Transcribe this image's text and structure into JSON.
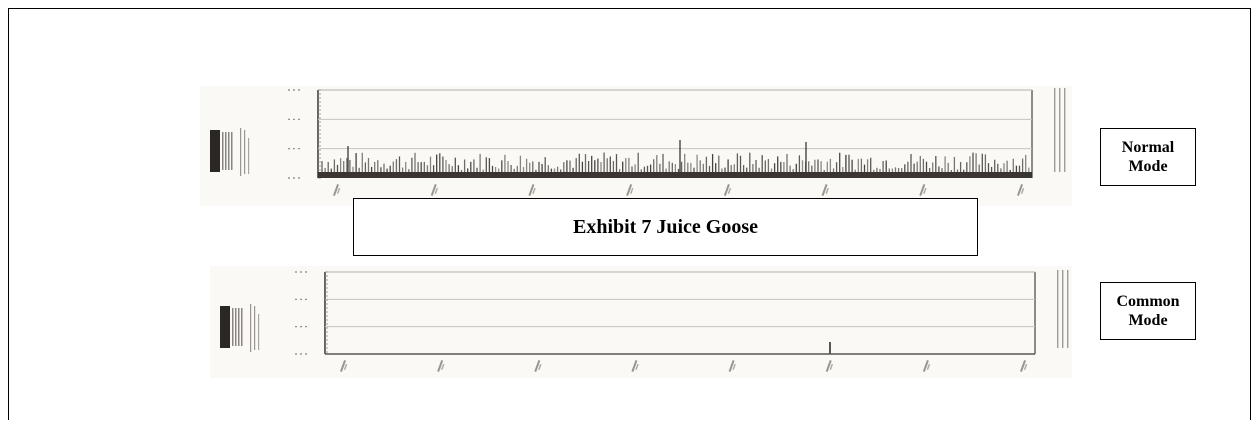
{
  "exhibit_title": "Exhibit 7 Juice Goose",
  "plots": [
    {
      "id": "normal",
      "mode_label_line1": "Normal",
      "mode_label_line2": "Mode",
      "bar_color": "#3a3532"
    },
    {
      "id": "common",
      "mode_label_line1": "Common",
      "mode_label_line2": "Mode",
      "bar_color": "#5a5550"
    }
  ]
}
